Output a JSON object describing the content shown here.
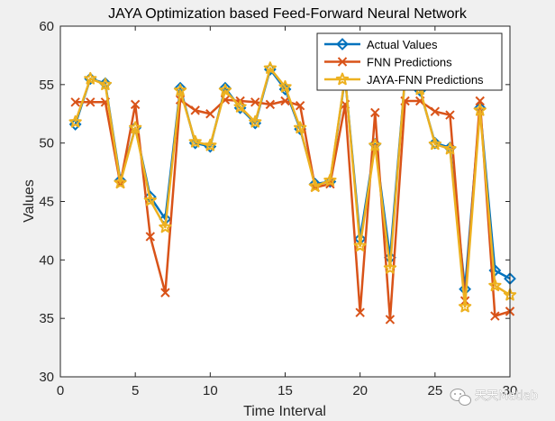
{
  "chart_data": {
    "type": "line",
    "title": "JAYA Optimization based Feed-Forward Neural Network",
    "xlabel": "Time Interval",
    "ylabel": "Values",
    "xlim": [
      0,
      30
    ],
    "ylim": [
      30,
      60
    ],
    "xticks": [
      0,
      5,
      10,
      15,
      20,
      25,
      30
    ],
    "yticks": [
      30,
      35,
      40,
      45,
      50,
      55,
      60
    ],
    "grid": false,
    "legend_position": "top-right",
    "x": [
      1,
      2,
      3,
      4,
      5,
      6,
      7,
      8,
      9,
      10,
      11,
      12,
      13,
      14,
      15,
      16,
      17,
      18,
      19,
      20,
      21,
      22,
      23,
      24,
      25,
      26,
      27,
      28,
      29,
      30
    ],
    "series": [
      {
        "name": "Actual Values",
        "color": "#0072BD",
        "marker": "diamond",
        "values": [
          51.6,
          55.5,
          55.1,
          46.8,
          51.3,
          45.4,
          43.5,
          54.7,
          50.0,
          49.7,
          54.7,
          53.0,
          51.7,
          56.3,
          54.6,
          51.2,
          46.5,
          46.7,
          55.6,
          41.8,
          49.9,
          40.2,
          55.6,
          54.5,
          50.0,
          49.6,
          37.5,
          53.0,
          39.1,
          38.4
        ]
      },
      {
        "name": "FNN Predictions",
        "color": "#D95319",
        "marker": "x",
        "values": [
          53.5,
          53.5,
          53.5,
          46.5,
          53.3,
          42.0,
          37.2,
          53.7,
          52.8,
          52.5,
          53.7,
          53.6,
          53.5,
          53.3,
          53.6,
          53.2,
          46.2,
          46.5,
          53.3,
          35.5,
          52.6,
          34.9,
          53.6,
          53.6,
          52.7,
          52.4,
          36.5,
          53.6,
          35.2,
          35.6
        ]
      },
      {
        "name": "JAYA-FNN Predictions",
        "color": "#EDB120",
        "marker": "star",
        "values": [
          51.8,
          55.5,
          55.0,
          46.6,
          51.3,
          45.1,
          42.8,
          54.5,
          50.1,
          49.8,
          54.5,
          53.1,
          51.8,
          56.4,
          54.8,
          51.3,
          46.3,
          46.8,
          55.7,
          41.2,
          49.8,
          39.3,
          55.7,
          54.6,
          49.9,
          49.5,
          36.0,
          52.8,
          37.8,
          37.0
        ]
      }
    ]
  },
  "watermark": {
    "text": "天天Matlab",
    "icon": "wechat-icon"
  }
}
